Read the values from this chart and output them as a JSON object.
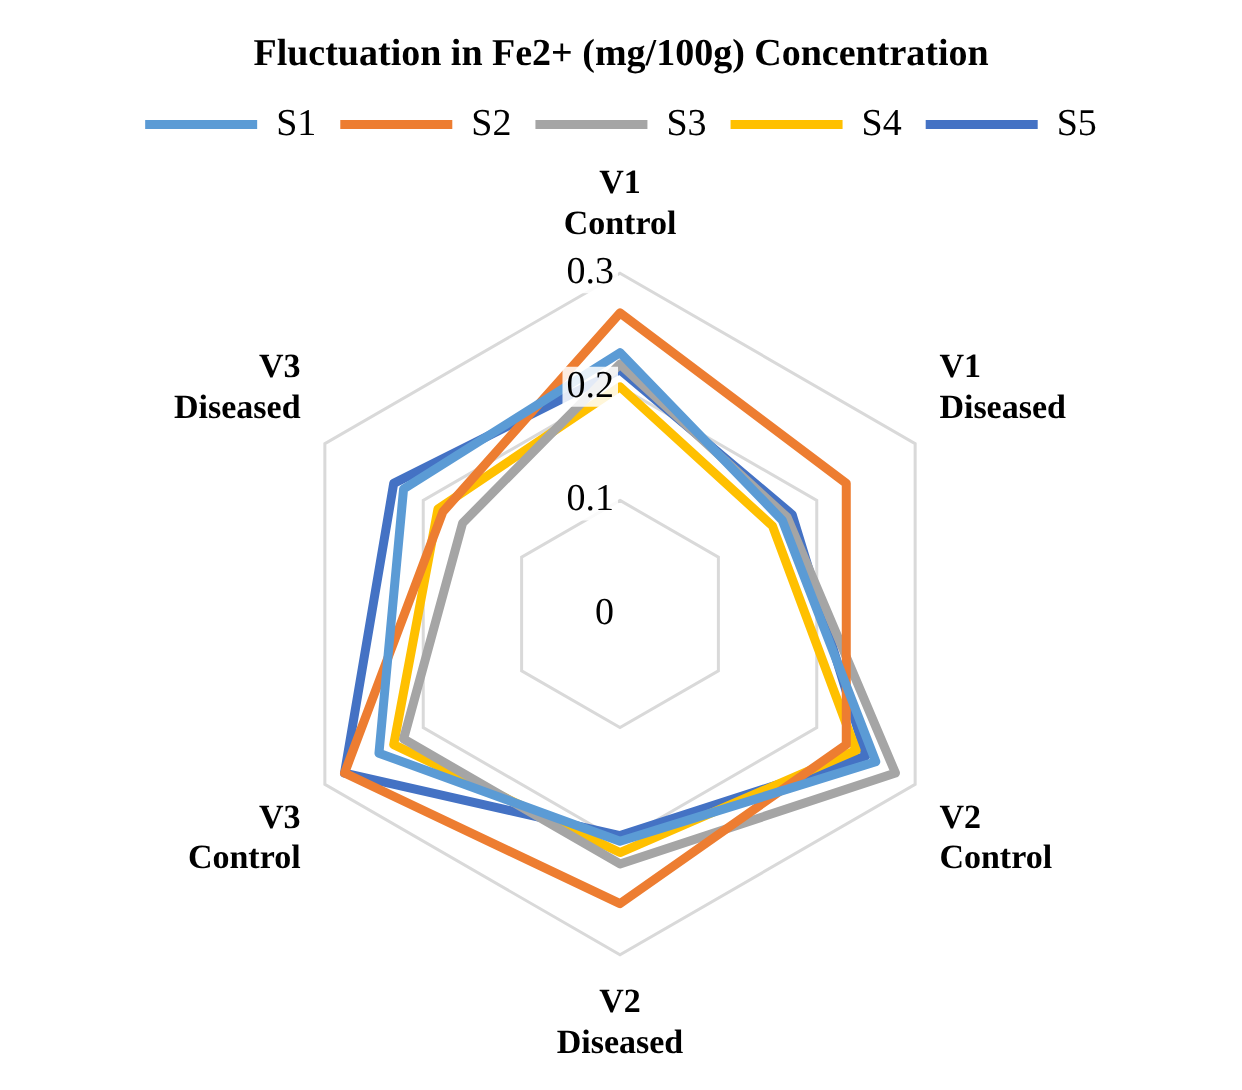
{
  "chart_data": {
    "type": "radar",
    "title": "Fluctuation in Fe2+ (mg/100g) Concentration",
    "categories": [
      "V1 Control",
      "V1 Diseased",
      "V2 Control",
      "V2 Diseased",
      "V3 Control",
      "V3 Diseased"
    ],
    "series": [
      {
        "name": "S1",
        "color": "#5b9bd5",
        "values": [
          0.23,
          0.165,
          0.26,
          0.2,
          0.245,
          0.22
        ]
      },
      {
        "name": "S2",
        "color": "#ed7d31",
        "values": [
          0.265,
          0.23,
          0.23,
          0.255,
          0.28,
          0.18
        ]
      },
      {
        "name": "S3",
        "color": "#a5a5a5",
        "values": [
          0.22,
          0.17,
          0.28,
          0.22,
          0.22,
          0.16
        ]
      },
      {
        "name": "S4",
        "color": "#ffc000",
        "values": [
          0.2,
          0.155,
          0.24,
          0.21,
          0.23,
          0.185
        ]
      },
      {
        "name": "S5",
        "color": "#4472c4",
        "values": [
          0.215,
          0.175,
          0.25,
          0.195,
          0.28,
          0.23
        ]
      }
    ],
    "ylim": [
      0,
      0.3
    ],
    "yticks": [
      0,
      0.1,
      0.2,
      0.3
    ],
    "grid": true,
    "legend": "top",
    "marker": "none",
    "line_style": "solid"
  }
}
